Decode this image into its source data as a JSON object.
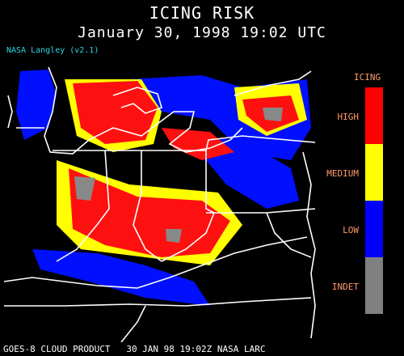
{
  "title": "ICING RISK",
  "timestamp": "January 30, 1998 19:02 UTC",
  "credit": "NASA Langley (v2.1)",
  "legend": {
    "title": "ICING",
    "items": [
      {
        "label": "HIGH",
        "color": "#ff0000"
      },
      {
        "label": "MEDIUM",
        "color": "#ffff00"
      },
      {
        "label": "LOW",
        "color": "#0000ff"
      },
      {
        "label": "INDET",
        "color": "#808080"
      }
    ]
  },
  "footer": "GOES-8 CLOUD PRODUCT   30 JAN 98 19:02Z NASA LARC",
  "colors": {
    "background": "#000000",
    "boundaries": "#ffffff",
    "title": "#ffffff",
    "credit": "#29d6e0",
    "legend_text": "#ff9b6a"
  }
}
